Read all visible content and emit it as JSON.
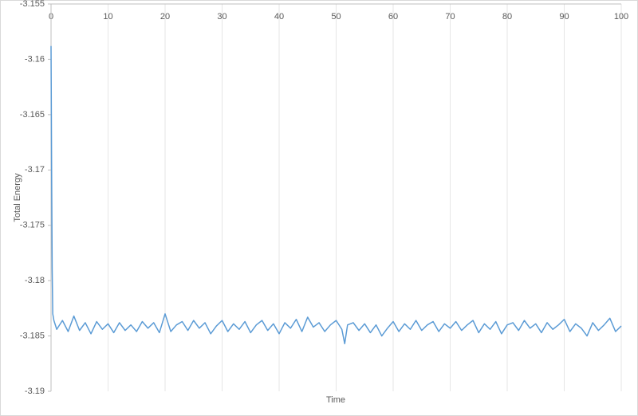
{
  "chart_data": {
    "type": "line",
    "x_label": "Time",
    "y_label": "Total Energy",
    "x": [
      0,
      0.1,
      0.2,
      0.3,
      0.5,
      1,
      2,
      3,
      4,
      5,
      6,
      7,
      8,
      9,
      10,
      11,
      12,
      13,
      14,
      15,
      16,
      17,
      18,
      19,
      20,
      21,
      22,
      23,
      24,
      25,
      26,
      27,
      28,
      29,
      30,
      31,
      32,
      33,
      34,
      35,
      36,
      37,
      38,
      39,
      40,
      41,
      42,
      43,
      44,
      45,
      46,
      47,
      48,
      49,
      50,
      51,
      51.5,
      52,
      53,
      54,
      55,
      56,
      57,
      58,
      59,
      60,
      61,
      62,
      63,
      64,
      65,
      66,
      67,
      68,
      69,
      70,
      71,
      72,
      73,
      74,
      75,
      76,
      77,
      78,
      79,
      80,
      81,
      82,
      83,
      84,
      85,
      86,
      87,
      88,
      89,
      90,
      91,
      92,
      93,
      94,
      95,
      96,
      97,
      98,
      99,
      100
    ],
    "series": [
      {
        "name": "Total Energy",
        "color": "#5b9bd5",
        "values": [
          -3.1588,
          -3.17,
          -3.179,
          -3.183,
          -3.1836,
          -3.1844,
          -3.1836,
          -3.1846,
          -3.1832,
          -3.1845,
          -3.1838,
          -3.1848,
          -3.1837,
          -3.1844,
          -3.1839,
          -3.1847,
          -3.1838,
          -3.1845,
          -3.184,
          -3.1846,
          -3.1837,
          -3.1843,
          -3.1838,
          -3.1847,
          -3.183,
          -3.1846,
          -3.184,
          -3.1837,
          -3.1845,
          -3.1836,
          -3.1843,
          -3.1838,
          -3.1848,
          -3.1841,
          -3.1836,
          -3.1846,
          -3.1839,
          -3.1844,
          -3.1837,
          -3.1847,
          -3.184,
          -3.1836,
          -3.1845,
          -3.1839,
          -3.1848,
          -3.1838,
          -3.1843,
          -3.1835,
          -3.1846,
          -3.1833,
          -3.1842,
          -3.1838,
          -3.1846,
          -3.184,
          -3.1836,
          -3.1844,
          -3.1857,
          -3.184,
          -3.1838,
          -3.1845,
          -3.1839,
          -3.1847,
          -3.184,
          -3.185,
          -3.1843,
          -3.1837,
          -3.1846,
          -3.1839,
          -3.1844,
          -3.1836,
          -3.1845,
          -3.184,
          -3.1837,
          -3.1846,
          -3.1839,
          -3.1843,
          -3.1837,
          -3.1845,
          -3.184,
          -3.1836,
          -3.1847,
          -3.1839,
          -3.1844,
          -3.1837,
          -3.1848,
          -3.184,
          -3.1838,
          -3.1845,
          -3.1836,
          -3.1843,
          -3.1839,
          -3.1847,
          -3.1838,
          -3.1844,
          -3.184,
          -3.1835,
          -3.1846,
          -3.1839,
          -3.1843,
          -3.185,
          -3.1838,
          -3.1845,
          -3.184,
          -3.1834,
          -3.1846,
          -3.1841
        ]
      }
    ],
    "xlim": [
      0,
      100
    ],
    "xticks": [
      0,
      10,
      20,
      30,
      40,
      50,
      60,
      70,
      80,
      90,
      100
    ],
    "ylim": [
      -3.19,
      -3.155
    ],
    "yticks": [
      -3.155,
      -3.16,
      -3.165,
      -3.17,
      -3.175,
      -3.18,
      -3.185,
      -3.19
    ],
    "grid": "x"
  }
}
